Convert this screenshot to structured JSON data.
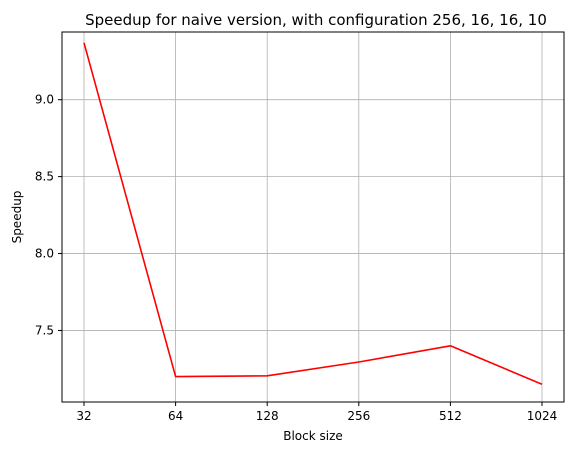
{
  "chart_data": {
    "type": "line",
    "title": "Speedup for naive version, with configuration 256, 16, 16, 10",
    "xlabel": "Block size",
    "ylabel": "Speedup",
    "x": [
      "32",
      "64",
      "128",
      "256",
      "512",
      "1024"
    ],
    "series": [
      {
        "values": [
          9.37,
          7.2,
          7.205,
          7.295,
          7.4,
          7.15
        ],
        "color": "#ff0000"
      }
    ],
    "yticks": [
      "7.5",
      "8.0",
      "8.5",
      "9.0"
    ],
    "ylim": [
      7.035,
      9.44
    ],
    "grid": true,
    "grid_color": "#b0b0b0",
    "legend": false
  }
}
